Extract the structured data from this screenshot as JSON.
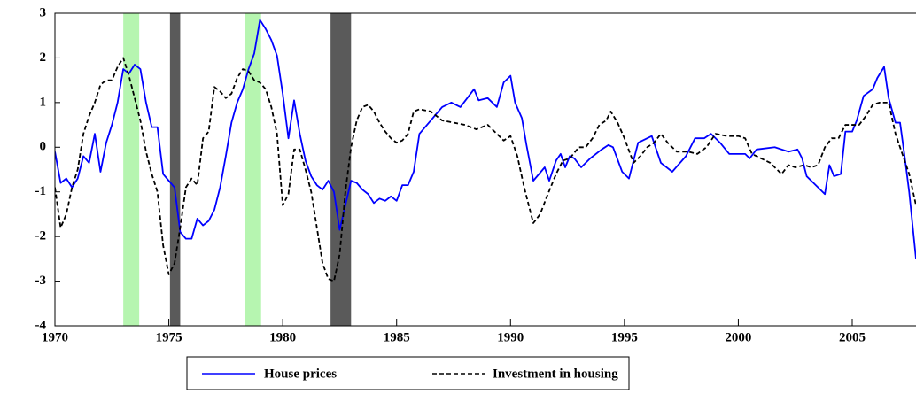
{
  "chart_data": {
    "type": "line",
    "xlim": [
      1970,
      2007.8
    ],
    "xticks": [
      1970,
      1975,
      1980,
      1985,
      1990,
      1995,
      2000,
      2005
    ],
    "ylim": [
      -4,
      3
    ],
    "yticks": [
      -4,
      -3,
      -2,
      -1,
      0,
      1,
      2,
      3
    ],
    "shaded_periods": [
      {
        "start": 1973.0,
        "end": 1973.7,
        "color": "#b6f5b0"
      },
      {
        "start": 1975.05,
        "end": 1975.5,
        "color": "#5a5a5a"
      },
      {
        "start": 1978.35,
        "end": 1979.05,
        "color": "#b6f5b0"
      },
      {
        "start": 1982.1,
        "end": 1983.0,
        "color": "#5a5a5a"
      }
    ],
    "series": [
      {
        "name": "House prices",
        "color": "#0000ff",
        "dash": false,
        "x": [
          1970.0,
          1970.25,
          1970.5,
          1970.75,
          1971.0,
          1971.25,
          1971.5,
          1971.75,
          1972.0,
          1972.25,
          1972.5,
          1972.75,
          1973.0,
          1973.25,
          1973.5,
          1973.75,
          1974.0,
          1974.25,
          1974.5,
          1974.75,
          1975.0,
          1975.25,
          1975.5,
          1975.75,
          1976.0,
          1976.25,
          1976.5,
          1976.75,
          1977.0,
          1977.25,
          1977.5,
          1977.75,
          1978.0,
          1978.25,
          1978.5,
          1978.75,
          1979.0,
          1979.25,
          1979.5,
          1979.75,
          1980.0,
          1980.25,
          1980.5,
          1980.75,
          1981.0,
          1981.25,
          1981.5,
          1981.75,
          1982.0,
          1982.25,
          1982.5,
          1982.75,
          1983.0,
          1983.25,
          1983.5,
          1983.75,
          1984.0,
          1984.25,
          1984.5,
          1984.75,
          1985.0,
          1985.25,
          1985.5,
          1985.75,
          1986.0,
          1986.5,
          1987.0,
          1987.4,
          1987.8,
          1988.4,
          1988.6,
          1989.0,
          1989.4,
          1989.7,
          1990.0,
          1990.2,
          1990.5,
          1990.7,
          1991.0,
          1991.5,
          1991.7,
          1992.0,
          1992.2,
          1992.4,
          1992.6,
          1992.8,
          1993.1,
          1993.5,
          1994.0,
          1994.3,
          1994.5,
          1994.9,
          1995.2,
          1995.6,
          1996.2,
          1996.6,
          1997.1,
          1997.7,
          1998.1,
          1998.5,
          1998.8,
          1999.2,
          1999.6,
          2000.3,
          2000.5,
          2000.8,
          2001.6,
          2002.2,
          2002.6,
          2002.8,
          2003.0,
          2003.3,
          2003.8,
          2004.0,
          2004.2,
          2004.5,
          2004.7,
          2005.0,
          2005.2,
          2005.5,
          2005.9,
          2006.1,
          2006.4,
          2006.6,
          2006.9,
          2007.1,
          2007.3,
          2007.5,
          2007.8
        ],
        "values": [
          -0.1,
          -0.8,
          -0.7,
          -0.9,
          -0.7,
          -0.2,
          -0.35,
          0.3,
          -0.55,
          0.1,
          0.5,
          1.0,
          1.75,
          1.65,
          1.85,
          1.75,
          1.0,
          0.45,
          0.45,
          -0.6,
          -0.75,
          -0.9,
          -1.9,
          -2.05,
          -2.05,
          -1.6,
          -1.75,
          -1.65,
          -1.4,
          -0.9,
          -0.2,
          0.55,
          1.0,
          1.3,
          1.75,
          2.1,
          2.85,
          2.65,
          2.4,
          2.05,
          1.2,
          0.2,
          1.05,
          0.3,
          -0.3,
          -0.65,
          -0.85,
          -0.95,
          -0.75,
          -1.0,
          -1.85,
          -1.3,
          -0.75,
          -0.8,
          -0.95,
          -1.05,
          -1.25,
          -1.15,
          -1.2,
          -1.1,
          -1.2,
          -0.85,
          -0.85,
          -0.55,
          0.3,
          0.6,
          0.9,
          1.0,
          0.9,
          1.3,
          1.05,
          1.1,
          0.9,
          1.45,
          1.6,
          1.0,
          0.65,
          0.05,
          -0.75,
          -0.45,
          -0.75,
          -0.3,
          -0.15,
          -0.45,
          -0.2,
          -0.25,
          -0.45,
          -0.25,
          -0.05,
          0.05,
          0.0,
          -0.55,
          -0.7,
          0.1,
          0.25,
          -0.35,
          -0.55,
          -0.2,
          0.2,
          0.2,
          0.3,
          0.1,
          -0.15,
          -0.15,
          -0.25,
          -0.05,
          0.0,
          -0.1,
          -0.05,
          -0.25,
          -0.65,
          -0.8,
          -1.05,
          -0.4,
          -0.65,
          -0.6,
          0.35,
          0.35,
          0.6,
          1.15,
          1.3,
          1.55,
          1.8,
          1.1,
          0.55,
          0.55,
          -0.2,
          -1.0,
          -2.5
        ]
      },
      {
        "name": "Investment in housing",
        "color": "#000000",
        "dash": true,
        "x": [
          1970.0,
          1970.25,
          1970.5,
          1970.75,
          1971.0,
          1971.25,
          1971.5,
          1971.75,
          1972.0,
          1972.25,
          1972.5,
          1972.75,
          1973.0,
          1973.25,
          1973.5,
          1973.75,
          1974.0,
          1974.25,
          1974.5,
          1974.75,
          1975.0,
          1975.25,
          1975.5,
          1975.75,
          1976.0,
          1976.25,
          1976.5,
          1976.75,
          1977.0,
          1977.25,
          1977.5,
          1977.75,
          1978.0,
          1978.25,
          1978.5,
          1978.75,
          1979.0,
          1979.25,
          1979.5,
          1979.75,
          1980.0,
          1980.25,
          1980.5,
          1980.75,
          1981.0,
          1981.25,
          1981.5,
          1981.75,
          1982.0,
          1982.25,
          1982.5,
          1982.75,
          1983.0,
          1983.25,
          1983.5,
          1983.75,
          1984.0,
          1984.25,
          1984.5,
          1984.75,
          1985.0,
          1985.25,
          1985.5,
          1985.75,
          1986.0,
          1986.5,
          1987.0,
          1987.5,
          1988.0,
          1988.5,
          1989.0,
          1989.4,
          1989.7,
          1990.0,
          1990.3,
          1990.6,
          1991.0,
          1991.3,
          1991.6,
          1992.0,
          1992.3,
          1992.6,
          1993.0,
          1993.3,
          1993.6,
          1993.9,
          1994.2,
          1994.4,
          1994.7,
          1995.0,
          1995.4,
          1995.7,
          1996.0,
          1996.3,
          1996.6,
          1996.9,
          1997.3,
          1997.8,
          1998.2,
          1998.6,
          1999.0,
          1999.5,
          2000.0,
          2000.3,
          2000.6,
          2001.0,
          2001.4,
          2001.9,
          2002.2,
          2002.5,
          2002.9,
          2003.2,
          2003.5,
          2003.8,
          2004.1,
          2004.4,
          2004.7,
          2005.0,
          2005.3,
          2005.6,
          2005.9,
          2006.2,
          2006.6,
          2006.9,
          2007.2,
          2007.5,
          2007.8
        ],
        "values": [
          -0.9,
          -1.8,
          -1.5,
          -0.9,
          -0.5,
          0.3,
          0.7,
          1.0,
          1.4,
          1.5,
          1.5,
          1.8,
          2.0,
          1.6,
          1.1,
          0.6,
          -0.1,
          -0.6,
          -1.0,
          -2.2,
          -2.85,
          -2.6,
          -1.8,
          -0.9,
          -0.7,
          -0.85,
          0.2,
          0.35,
          1.35,
          1.25,
          1.1,
          1.2,
          1.55,
          1.75,
          1.7,
          1.5,
          1.45,
          1.3,
          0.9,
          0.3,
          -1.3,
          -1.05,
          -0.05,
          -0.05,
          -0.5,
          -1.0,
          -1.8,
          -2.6,
          -2.95,
          -3.0,
          -2.4,
          -1.0,
          0.0,
          0.6,
          0.9,
          0.95,
          0.8,
          0.55,
          0.35,
          0.2,
          0.1,
          0.15,
          0.3,
          0.8,
          0.85,
          0.8,
          0.6,
          0.55,
          0.5,
          0.4,
          0.5,
          0.3,
          0.15,
          0.25,
          -0.2,
          -0.9,
          -1.7,
          -1.5,
          -1.1,
          -0.6,
          -0.3,
          -0.25,
          0.0,
          0.0,
          0.2,
          0.5,
          0.6,
          0.8,
          0.55,
          0.2,
          -0.35,
          -0.2,
          0.0,
          0.1,
          0.3,
          0.1,
          -0.1,
          -0.1,
          -0.15,
          0.0,
          0.3,
          0.25,
          0.25,
          0.2,
          -0.15,
          -0.25,
          -0.35,
          -0.6,
          -0.4,
          -0.45,
          -0.4,
          -0.45,
          -0.4,
          0.0,
          0.2,
          0.2,
          0.5,
          0.5,
          0.5,
          0.7,
          0.95,
          1.0,
          1.0,
          0.3,
          -0.15,
          -0.6,
          -1.3
        ]
      }
    ]
  }
}
